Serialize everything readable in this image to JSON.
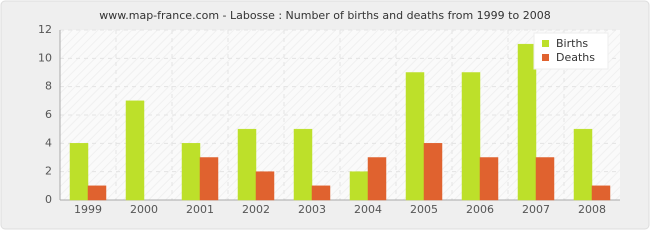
{
  "chart_data": {
    "type": "bar",
    "title": "www.map-france.com - Labosse : Number of births and deaths from 1999 to 2008",
    "categories": [
      "1999",
      "2000",
      "2001",
      "2002",
      "2003",
      "2004",
      "2005",
      "2006",
      "2007",
      "2008"
    ],
    "series": [
      {
        "name": "Births",
        "color": "#bde02a",
        "values": [
          4,
          7,
          4,
          5,
          5,
          2,
          9,
          9,
          11,
          5
        ]
      },
      {
        "name": "Deaths",
        "color": "#e0622f",
        "values": [
          1,
          0,
          3,
          2,
          1,
          3,
          4,
          3,
          3,
          1
        ]
      }
    ],
    "ylim": [
      0,
      12
    ],
    "yticks": [
      0,
      2,
      4,
      6,
      8,
      10,
      12
    ],
    "grid": true,
    "legend": "top-right"
  }
}
